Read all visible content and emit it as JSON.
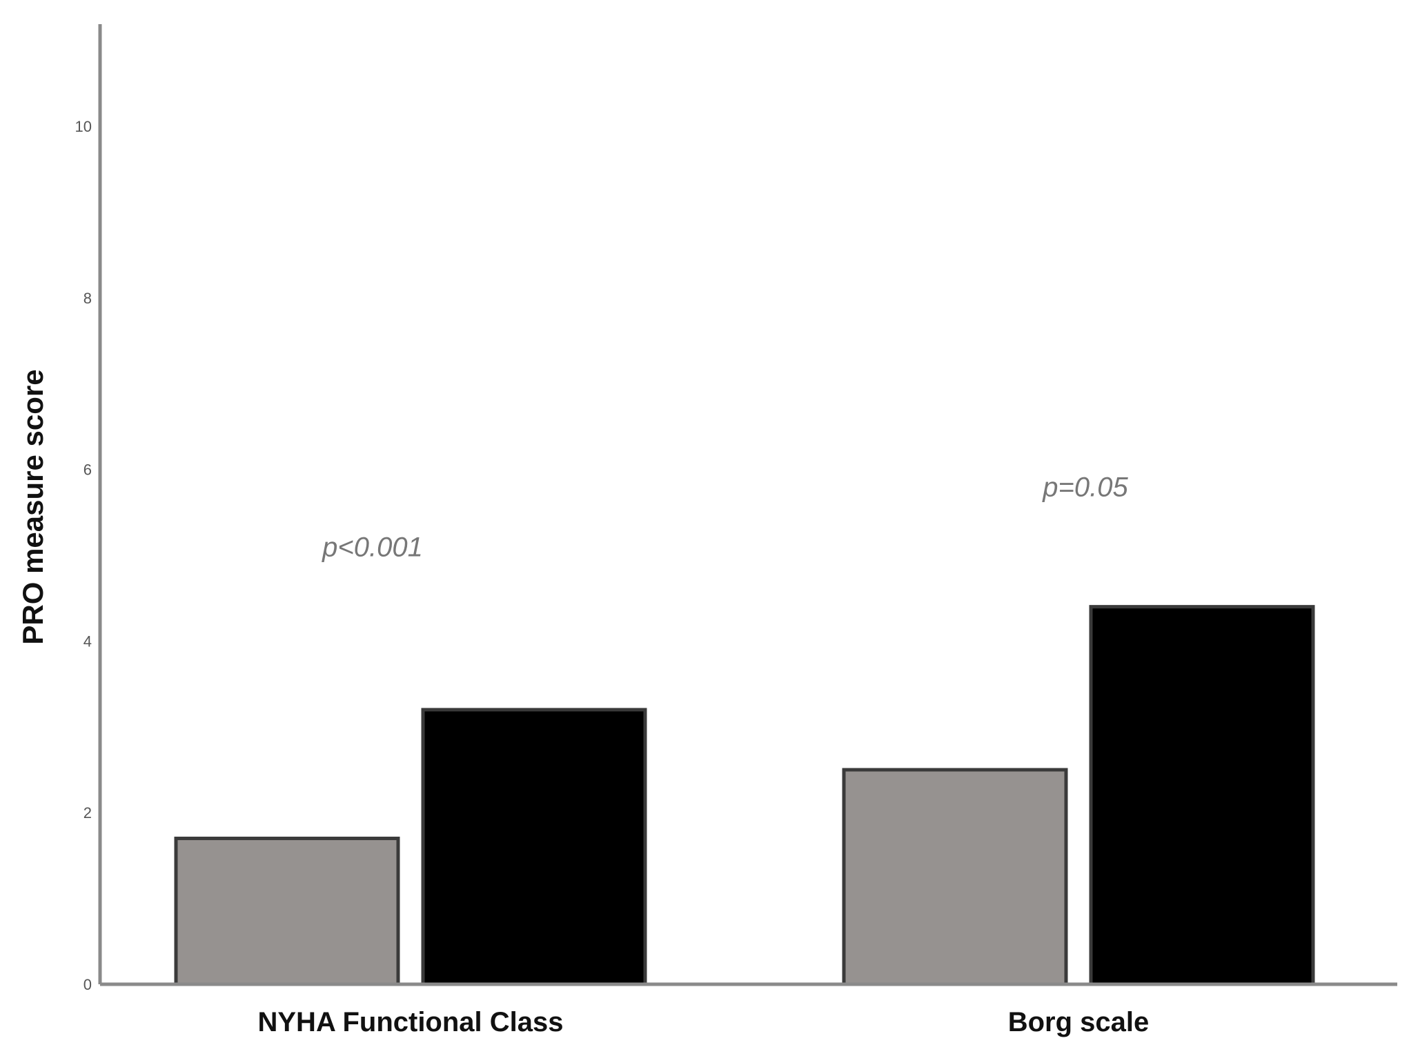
{
  "chart_data": {
    "type": "bar",
    "title": "",
    "xlabel": "",
    "ylabel": "PRO measure score",
    "ylim": [
      0,
      10
    ],
    "yticks": [
      "0",
      "2",
      "4",
      "6",
      "8",
      "10"
    ],
    "categories": [
      "NYHA Functional Class",
      "Borg scale"
    ],
    "series": [
      {
        "values": [
          1.7,
          2.5
        ],
        "color": "#969290"
      },
      {
        "values": [
          3.2,
          4.4
        ],
        "color": "#000000"
      }
    ],
    "annotations": [
      "p<0.001",
      "p=0.05"
    ],
    "grid": false,
    "legend": "none"
  }
}
